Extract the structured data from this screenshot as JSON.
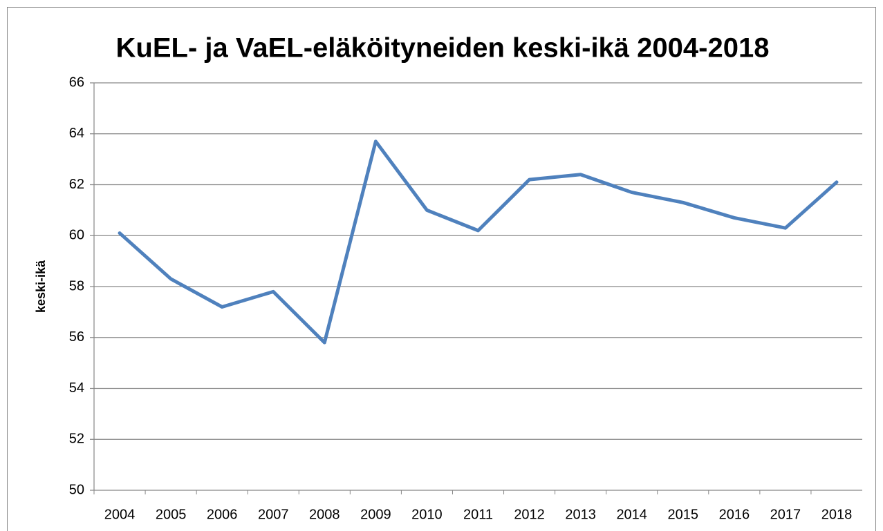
{
  "chart_data": {
    "type": "line",
    "title": "KuEL- ja VaEL-eläköityneiden keski-ikä 2004-2018",
    "y_label": "keski-ikä",
    "categories": [
      "2004",
      "2005",
      "2006",
      "2007",
      "2008",
      "2009",
      "2010",
      "2011",
      "2012",
      "2013",
      "2014",
      "2015",
      "2016",
      "2017",
      "2018"
    ],
    "series": [
      {
        "name": "keski-ikä",
        "color": "#4f81bd",
        "values": [
          60.1,
          58.3,
          57.2,
          57.8,
          55.8,
          63.7,
          61.0,
          60.2,
          62.2,
          62.4,
          61.7,
          61.3,
          60.7,
          60.3,
          62.1
        ]
      }
    ],
    "ylim": [
      50,
      66
    ],
    "yticks": [
      50,
      52,
      54,
      56,
      58,
      60,
      62,
      64,
      66
    ],
    "grid": true,
    "legend": false
  }
}
